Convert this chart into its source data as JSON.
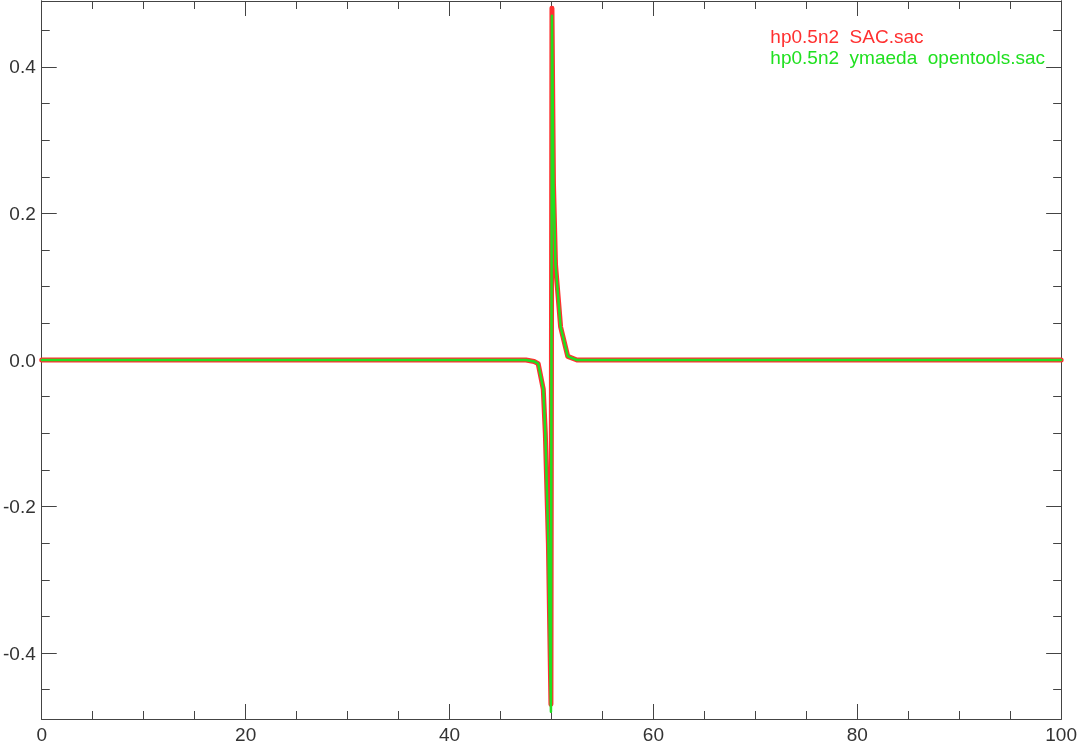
{
  "chart_data": {
    "type": "line",
    "legend": "top right",
    "xlim": [
      0,
      100
    ],
    "ylim": [
      -0.49,
      0.49
    ],
    "xticks": [
      0,
      {
        "value": 5,
        "label": null
      },
      {
        "value": 10,
        "label": null
      },
      {
        "value": 15,
        "label": null
      },
      20,
      {
        "value": 25,
        "label": null
      },
      {
        "value": 30,
        "label": null
      },
      {
        "value": 35,
        "label": null
      },
      40,
      {
        "value": 45,
        "label": null
      },
      {
        "value": 50,
        "label": null
      },
      {
        "value": 55,
        "label": null
      },
      60,
      {
        "value": 65,
        "label": null
      },
      {
        "value": 70,
        "label": null
      },
      {
        "value": 75,
        "label": null
      },
      80,
      {
        "value": 85,
        "label": null
      },
      {
        "value": 90,
        "label": null
      },
      {
        "value": 95,
        "label": null
      },
      100
    ],
    "yticks": [
      {
        "value": -0.45,
        "label": null
      },
      {
        "value": -0.4,
        "label": "-0.4"
      },
      {
        "value": -0.35,
        "label": null
      },
      {
        "value": -0.3,
        "label": null
      },
      {
        "value": -0.25,
        "label": null
      },
      {
        "value": -0.2,
        "label": "-0.2"
      },
      {
        "value": -0.15,
        "label": null
      },
      {
        "value": -0.1,
        "label": null
      },
      {
        "value": -0.05,
        "label": null
      },
      {
        "value": 0,
        "label": "0.0"
      },
      {
        "value": 0.05,
        "label": null
      },
      {
        "value": 0.1,
        "label": null
      },
      {
        "value": 0.15,
        "label": null
      },
      {
        "value": 0.2,
        "label": "0.2"
      },
      {
        "value": 0.25,
        "label": null
      },
      {
        "value": 0.3,
        "label": null
      },
      {
        "value": 0.35,
        "label": null
      },
      {
        "value": 0.4,
        "label": "0.4"
      },
      {
        "value": 0.45,
        "label": null
      }
    ],
    "series": [
      {
        "name": "hp0.5n2  SAC.sac",
        "color": "#ff3030",
        "x": [
          0,
          45,
          47.5,
          48.3,
          48.7,
          49.2,
          49.4,
          49.7,
          49.95,
          50.05,
          50.2,
          50.4,
          50.9,
          51.6,
          52.5,
          100
        ],
        "values": [
          0,
          0,
          0,
          -0.002,
          -0.005,
          -0.04,
          -0.1,
          -0.25,
          -0.47,
          0.48,
          0.24,
          0.13,
          0.045,
          0.005,
          0,
          0
        ]
      },
      {
        "name": "hp0.5n2  ymaeda  opentools.sac",
        "color": "#20e020",
        "x": [
          0,
          45,
          47.5,
          48.3,
          48.7,
          49.2,
          49.4,
          49.7,
          49.95,
          50.05,
          50.2,
          50.4,
          50.9,
          51.6,
          52.5,
          100
        ],
        "values": [
          0,
          0,
          0,
          -0.002,
          -0.005,
          -0.04,
          -0.1,
          -0.25,
          -0.48,
          0.47,
          0.24,
          0.13,
          0.045,
          0.005,
          0,
          0
        ]
      }
    ]
  }
}
